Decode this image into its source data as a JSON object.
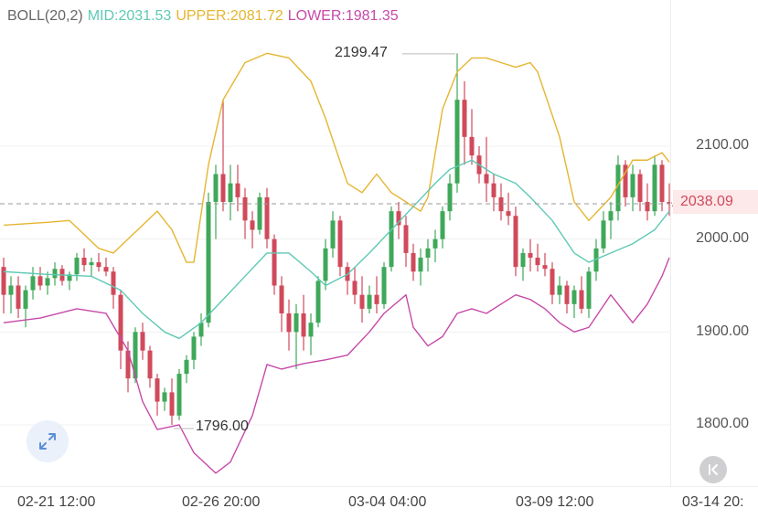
{
  "legend": {
    "indicator": "BOLL(20,2)",
    "mid": "MID:2031.53",
    "upper": "UPPER:2081.72",
    "lower": "LOWER:1981.35"
  },
  "colors": {
    "up": "#3fa85a",
    "down": "#d04a5b",
    "mid": "#5ec9b4",
    "upper": "#e5b530",
    "lower": "#c649a8",
    "legend_label": "#666666"
  },
  "axis": {
    "price_labels": [
      "2100.00",
      "2000.00",
      "1900.00",
      "1800.00"
    ],
    "time_labels": [
      "02-21 12:00",
      "02-26 20:00",
      "03-04 04:00",
      "03-09 12:00",
      "03-14 20:"
    ]
  },
  "annotations": {
    "high": "2199.47",
    "low": "1796.00",
    "last_price": "2038.09"
  },
  "icons": {
    "expand": "expand-arrows-icon",
    "back": "chevron-left-end-icon"
  },
  "chart_data": {
    "type": "candlestick",
    "y_range": [
      1730,
      2260
    ],
    "candles": [
      [
        1970,
        1980,
        1920,
        1940
      ],
      [
        1940,
        1960,
        1920,
        1950
      ],
      [
        1950,
        1960,
        1915,
        1925
      ],
      [
        1925,
        1950,
        1905,
        1945
      ],
      [
        1945,
        1970,
        1935,
        1960
      ],
      [
        1960,
        1970,
        1945,
        1950
      ],
      [
        1950,
        1965,
        1940,
        1958
      ],
      [
        1958,
        1975,
        1950,
        1968
      ],
      [
        1968,
        1972,
        1950,
        1955
      ],
      [
        1955,
        1965,
        1945,
        1962
      ],
      [
        1962,
        1985,
        1955,
        1980
      ],
      [
        1980,
        1990,
        1965,
        1972
      ],
      [
        1972,
        1980,
        1960,
        1975
      ],
      [
        1975,
        1985,
        1965,
        1970
      ],
      [
        1970,
        1980,
        1960,
        1965
      ],
      [
        1965,
        1970,
        1925,
        1940
      ],
      [
        1940,
        1945,
        1860,
        1880
      ],
      [
        1880,
        1890,
        1835,
        1850
      ],
      [
        1850,
        1905,
        1845,
        1900
      ],
      [
        1900,
        1910,
        1870,
        1880
      ],
      [
        1880,
        1885,
        1840,
        1850
      ],
      [
        1850,
        1855,
        1810,
        1825
      ],
      [
        1825,
        1840,
        1815,
        1835
      ],
      [
        1835,
        1850,
        1800,
        1810
      ],
      [
        1810,
        1860,
        1805,
        1855
      ],
      [
        1855,
        1875,
        1845,
        1870
      ],
      [
        1870,
        1900,
        1860,
        1895
      ],
      [
        1895,
        1920,
        1885,
        1910
      ],
      [
        1910,
        2050,
        1905,
        2040
      ],
      [
        2040,
        2080,
        2000,
        2070
      ],
      [
        2070,
        2150,
        2030,
        2040
      ],
      [
        2040,
        2080,
        2020,
        2060
      ],
      [
        2060,
        2080,
        2030,
        2045
      ],
      [
        2045,
        2055,
        2000,
        2020
      ],
      [
        2020,
        2030,
        1990,
        2010
      ],
      [
        2010,
        2050,
        2005,
        2045
      ],
      [
        2045,
        2055,
        1990,
        2000
      ],
      [
        2000,
        2005,
        1940,
        1950
      ],
      [
        1950,
        1960,
        1900,
        1920
      ],
      [
        1920,
        1935,
        1880,
        1900
      ],
      [
        1900,
        1930,
        1860,
        1920
      ],
      [
        1920,
        1940,
        1880,
        1895
      ],
      [
        1895,
        1920,
        1875,
        1910
      ],
      [
        1910,
        1960,
        1905,
        1955
      ],
      [
        1955,
        2000,
        1945,
        1990
      ],
      [
        1990,
        2030,
        1980,
        2020
      ],
      [
        2020,
        2025,
        1960,
        1970
      ],
      [
        1970,
        1975,
        1940,
        1955
      ],
      [
        1955,
        1970,
        1930,
        1940
      ],
      [
        1940,
        1960,
        1910,
        1925
      ],
      [
        1925,
        1950,
        1920,
        1940
      ],
      [
        1940,
        1960,
        1920,
        1930
      ],
      [
        1930,
        1975,
        1925,
        1970
      ],
      [
        1970,
        2035,
        1965,
        2030
      ],
      [
        2030,
        2040,
        2000,
        2015
      ],
      [
        2015,
        2025,
        1970,
        1985
      ],
      [
        1985,
        1995,
        1955,
        1965
      ],
      [
        1965,
        1990,
        1950,
        1980
      ],
      [
        1980,
        2000,
        1965,
        1990
      ],
      [
        1990,
        2010,
        1975,
        2000
      ],
      [
        2000,
        2035,
        1990,
        2030
      ],
      [
        2030,
        2070,
        2020,
        2060
      ],
      [
        2060,
        2200,
        2050,
        2150
      ],
      [
        2150,
        2170,
        2080,
        2110
      ],
      [
        2110,
        2140,
        2080,
        2090
      ],
      [
        2090,
        2100,
        2060,
        2070
      ],
      [
        2070,
        2110,
        2040,
        2060
      ],
      [
        2060,
        2070,
        2030,
        2045
      ],
      [
        2045,
        2060,
        2020,
        2030
      ],
      [
        2030,
        2050,
        2015,
        2025
      ],
      [
        2025,
        2035,
        1960,
        1970
      ],
      [
        1970,
        1990,
        1955,
        1985
      ],
      [
        1985,
        2000,
        1965,
        1980
      ],
      [
        1980,
        1995,
        1965,
        1972
      ],
      [
        1972,
        1985,
        1960,
        1968
      ],
      [
        1968,
        1975,
        1930,
        1940
      ],
      [
        1940,
        1960,
        1930,
        1950
      ],
      [
        1950,
        1955,
        1920,
        1930
      ],
      [
        1930,
        1950,
        1915,
        1945
      ],
      [
        1945,
        1960,
        1920,
        1925
      ],
      [
        1925,
        1970,
        1915,
        1965
      ],
      [
        1965,
        2000,
        1955,
        1990
      ],
      [
        1990,
        2030,
        1985,
        2020
      ],
      [
        2020,
        2040,
        2000,
        2030
      ],
      [
        2030,
        2090,
        2020,
        2080
      ],
      [
        2080,
        2085,
        2035,
        2045
      ],
      [
        2045,
        2080,
        2030,
        2070
      ],
      [
        2070,
        2075,
        2030,
        2040
      ],
      [
        2040,
        2060,
        2020,
        2030
      ],
      [
        2030,
        2090,
        2025,
        2080
      ],
      [
        2080,
        2085,
        2030,
        2040
      ],
      [
        2040,
        2060,
        2025,
        2038
      ]
    ],
    "mid_line": [
      [
        0,
        1965
      ],
      [
        6,
        1962
      ],
      [
        12,
        1960
      ],
      [
        16,
        1945
      ],
      [
        19,
        1920
      ],
      [
        22,
        1900
      ],
      [
        24,
        1893
      ],
      [
        27,
        1910
      ],
      [
        30,
        1935
      ],
      [
        33,
        1960
      ],
      [
        36,
        1985
      ],
      [
        39,
        1985
      ],
      [
        42,
        1965
      ],
      [
        44,
        1950
      ],
      [
        47,
        1962
      ],
      [
        50,
        1985
      ],
      [
        53,
        2010
      ],
      [
        56,
        2035
      ],
      [
        59,
        2060
      ],
      [
        61,
        2075
      ],
      [
        64,
        2085
      ],
      [
        67,
        2070
      ],
      [
        70,
        2060
      ],
      [
        72,
        2045
      ],
      [
        75,
        2020
      ],
      [
        78,
        1985
      ],
      [
        80,
        1975
      ],
      [
        83,
        1985
      ],
      [
        86,
        1995
      ],
      [
        89,
        2010
      ],
      [
        91,
        2030
      ]
    ],
    "upper_line": [
      [
        0,
        2015
      ],
      [
        6,
        2018
      ],
      [
        9,
        2020
      ],
      [
        13,
        1990
      ],
      [
        15,
        1985
      ],
      [
        17,
        2000
      ],
      [
        19,
        2015
      ],
      [
        21,
        2030
      ],
      [
        23,
        2010
      ],
      [
        25,
        1975
      ],
      [
        26,
        1975
      ],
      [
        28,
        2080
      ],
      [
        30,
        2150
      ],
      [
        33,
        2190
      ],
      [
        36,
        2200
      ],
      [
        39,
        2195
      ],
      [
        42,
        2170
      ],
      [
        44,
        2130
      ],
      [
        47,
        2060
      ],
      [
        49,
        2050
      ],
      [
        51,
        2070
      ],
      [
        53,
        2050
      ],
      [
        55,
        2040
      ],
      [
        57,
        2030
      ],
      [
        58,
        2045
      ],
      [
        60,
        2140
      ],
      [
        62,
        2180
      ],
      [
        64,
        2195
      ],
      [
        66,
        2195
      ],
      [
        68,
        2190
      ],
      [
        70,
        2185
      ],
      [
        72,
        2190
      ],
      [
        73,
        2180
      ],
      [
        76,
        2110
      ],
      [
        78,
        2040
      ],
      [
        80,
        2020
      ],
      [
        83,
        2045
      ],
      [
        86,
        2085
      ],
      [
        88,
        2085
      ],
      [
        90,
        2093
      ],
      [
        91,
        2083
      ]
    ],
    "lower_line": [
      [
        0,
        1910
      ],
      [
        5,
        1915
      ],
      [
        10,
        1925
      ],
      [
        14,
        1920
      ],
      [
        17,
        1880
      ],
      [
        19,
        1825
      ],
      [
        21,
        1795
      ],
      [
        24,
        1800
      ],
      [
        26,
        1770
      ],
      [
        29,
        1748
      ],
      [
        31,
        1760
      ],
      [
        34,
        1810
      ],
      [
        36,
        1865
      ],
      [
        38,
        1860
      ],
      [
        41,
        1866
      ],
      [
        44,
        1870
      ],
      [
        47,
        1875
      ],
      [
        50,
        1900
      ],
      [
        52,
        1920
      ],
      [
        55,
        1940
      ],
      [
        56,
        1905
      ],
      [
        58,
        1885
      ],
      [
        60,
        1895
      ],
      [
        62,
        1920
      ],
      [
        64,
        1925
      ],
      [
        66,
        1920
      ],
      [
        68,
        1930
      ],
      [
        70,
        1940
      ],
      [
        72,
        1935
      ],
      [
        74,
        1925
      ],
      [
        76,
        1910
      ],
      [
        78,
        1900
      ],
      [
        80,
        1905
      ],
      [
        83,
        1940
      ],
      [
        86,
        1910
      ],
      [
        88,
        1930
      ],
      [
        90,
        1960
      ],
      [
        91,
        1980
      ]
    ]
  }
}
